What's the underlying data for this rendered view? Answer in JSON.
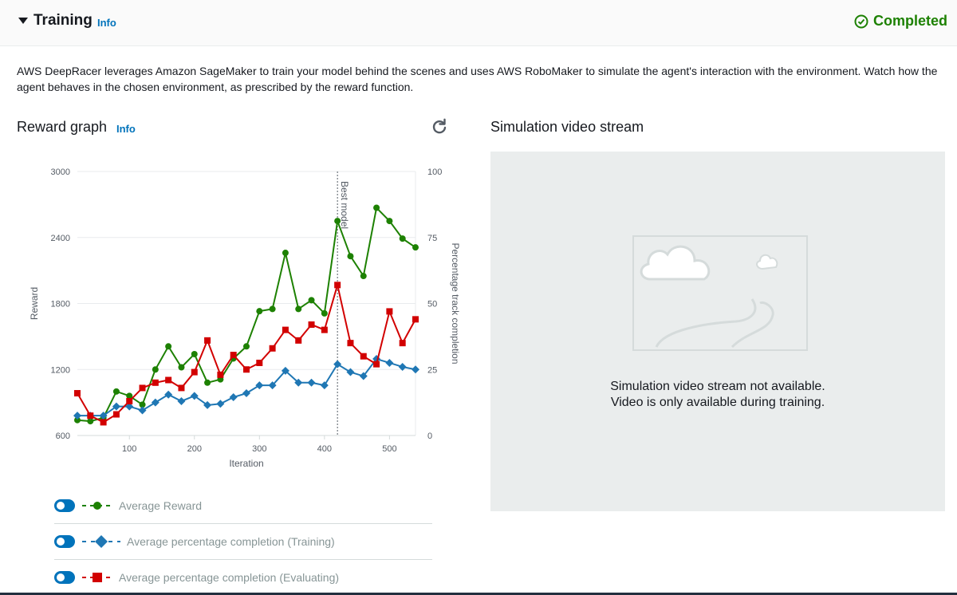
{
  "header": {
    "title": "Training",
    "info_label": "Info",
    "status": "Completed",
    "status_color": "#1d8102"
  },
  "description": "AWS DeepRacer leverages Amazon SageMaker to train your model behind the scenes and uses AWS RoboMaker to simulate the agent's interaction with the environment. Watch how the agent behaves in the chosen environment, as prescribed by the reward function.",
  "reward_graph": {
    "title": "Reward graph",
    "info_label": "Info",
    "refresh_icon": "refresh-icon"
  },
  "legend": [
    {
      "label": "Average Reward",
      "enabled": true,
      "color": "#1d8102",
      "marker": "circle"
    },
    {
      "label": "Average percentage completion (Training)",
      "enabled": true,
      "color": "#1f77b4",
      "marker": "diamond"
    },
    {
      "label": "Average percentage completion (Evaluating)",
      "enabled": true,
      "color": "#d20000",
      "marker": "square"
    }
  ],
  "chart_data": {
    "type": "line",
    "xlabel": "Iteration",
    "ylabel": "Reward",
    "y2label": "Percentage track completion",
    "xlim": [
      20,
      540
    ],
    "ylim": [
      600,
      3000
    ],
    "y2lim": [
      0,
      100
    ],
    "x_ticks": [
      100,
      200,
      300,
      400,
      500
    ],
    "y_ticks": [
      600,
      1200,
      1800,
      2400,
      3000
    ],
    "y2_ticks": [
      0,
      25,
      50,
      75,
      100
    ],
    "grid": true,
    "annotation": {
      "label": "Best model",
      "x": 420
    },
    "series": [
      {
        "name": "Average Reward",
        "axis": "left",
        "color": "#1d8102",
        "marker": "circle",
        "x": [
          20,
          40,
          60,
          80,
          100,
          120,
          140,
          160,
          180,
          200,
          220,
          240,
          260,
          280,
          300,
          320,
          340,
          360,
          380,
          400,
          420,
          440,
          460,
          480,
          500,
          520,
          540
        ],
        "values": [
          740,
          730,
          760,
          1000,
          960,
          880,
          1200,
          1410,
          1220,
          1340,
          1080,
          1110,
          1300,
          1410,
          1730,
          1750,
          2260,
          1750,
          1830,
          1710,
          2550,
          2230,
          2050,
          2670,
          2550,
          2390,
          2310
        ]
      },
      {
        "name": "Average percentage completion (Training)",
        "axis": "right",
        "color": "#1f77b4",
        "marker": "diamond",
        "x": [
          20,
          40,
          60,
          80,
          100,
          120,
          140,
          160,
          180,
          200,
          220,
          240,
          260,
          280,
          300,
          320,
          340,
          360,
          380,
          400,
          420,
          440,
          460,
          480,
          500,
          520,
          540
        ],
        "values": [
          7.5,
          7.5,
          7.5,
          11,
          11,
          9.5,
          12.5,
          15.5,
          13,
          15,
          11.5,
          12,
          14.5,
          16,
          19,
          19,
          24.5,
          20,
          20,
          19,
          27,
          24,
          22.5,
          29,
          27.5,
          26,
          25
        ]
      },
      {
        "name": "Average percentage completion (Evaluating)",
        "axis": "right",
        "color": "#d20000",
        "marker": "square",
        "x": [
          20,
          40,
          60,
          80,
          100,
          120,
          140,
          160,
          180,
          200,
          220,
          240,
          260,
          280,
          300,
          320,
          340,
          360,
          380,
          400,
          420,
          440,
          460,
          480,
          500,
          520,
          540
        ],
        "values": [
          16,
          7.5,
          5,
          8,
          13,
          18,
          20,
          21,
          18,
          24,
          36,
          23,
          30.5,
          25,
          27.5,
          33,
          40,
          36,
          42,
          40,
          57,
          35,
          30,
          27,
          47,
          35,
          44
        ]
      }
    ]
  },
  "video": {
    "title": "Simulation video stream",
    "message_line1": "Simulation video stream not available.",
    "message_line2": "Video is only available during training."
  }
}
